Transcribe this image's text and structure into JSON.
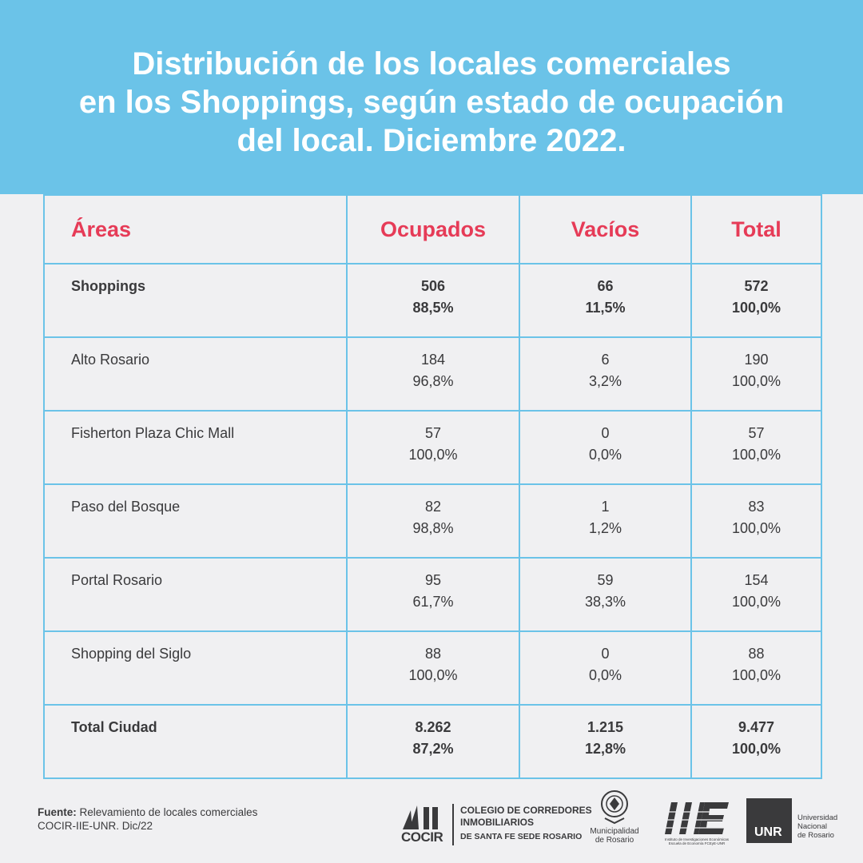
{
  "title": {
    "line1": "Distribución de los locales comerciales",
    "line2": "en los Shoppings, según estado de ocupación",
    "line3": "del local. Diciembre 2022."
  },
  "table": {
    "headers": [
      "Áreas",
      "Ocupados",
      "Vacíos",
      "Total"
    ],
    "rows": [
      {
        "area": "Shoppings",
        "bold": true,
        "ocupados": "506",
        "ocupados_pct": "88,5%",
        "vacios": "66",
        "vacios_pct": "11,5%",
        "total": "572",
        "total_pct": "100,0%"
      },
      {
        "area": "Alto Rosario",
        "bold": false,
        "ocupados": "184",
        "ocupados_pct": "96,8%",
        "vacios": "6",
        "vacios_pct": "3,2%",
        "total": "190",
        "total_pct": "100,0%"
      },
      {
        "area": "Fisherton Plaza Chic Mall",
        "bold": false,
        "ocupados": "57",
        "ocupados_pct": "100,0%",
        "vacios": "0",
        "vacios_pct": "0,0%",
        "total": "57",
        "total_pct": "100,0%"
      },
      {
        "area": "Paso del Bosque",
        "bold": false,
        "ocupados": "82",
        "ocupados_pct": "98,8%",
        "vacios": "1",
        "vacios_pct": "1,2%",
        "total": "83",
        "total_pct": "100,0%"
      },
      {
        "area": "Portal Rosario",
        "bold": false,
        "ocupados": "95",
        "ocupados_pct": "61,7%",
        "vacios": "59",
        "vacios_pct": "38,3%",
        "total": "154",
        "total_pct": "100,0%"
      },
      {
        "area": "Shopping del Siglo",
        "bold": false,
        "ocupados": "88",
        "ocupados_pct": "100,0%",
        "vacios": "0",
        "vacios_pct": "0,0%",
        "total": "88",
        "total_pct": "100,0%"
      },
      {
        "area": "Total Ciudad",
        "bold": true,
        "ocupados": "8.262",
        "ocupados_pct": "87,2%",
        "vacios": "1.215",
        "vacios_pct": "12,8%",
        "total": "9.477",
        "total_pct": "100,0%"
      }
    ]
  },
  "footer": {
    "source_label": "Fuente:",
    "source_text": "Relevamiento de locales comerciales",
    "source_line2": "COCIR-IIE-UNR. Dic/22"
  },
  "logos": {
    "cocir_word": "COCIR",
    "cocir_line1": "COLEGIO DE CORREDORES",
    "cocir_line2": "INMOBILIARIOS",
    "cocir_line3": "DE SANTA FE SEDE ROSARIO",
    "muni_line1": "Municipalidad",
    "muni_line2": "de Rosario",
    "iie_line1": "Instituto de Investigaciones Económicas",
    "iie_line2": "Escuela de Economía FCEyE-UNR",
    "unr_box": "UNR",
    "unr_line1": "Universidad",
    "unr_line2": "Nacional",
    "unr_line3": "de Rosario"
  },
  "colors": {
    "header_bg": "#6bc3e8",
    "header_text": "#ffffff",
    "accent_red": "#e63b57",
    "table_border": "#6bc3e8",
    "page_bg": "#f0f0f2",
    "text": "#3a3a3c"
  }
}
